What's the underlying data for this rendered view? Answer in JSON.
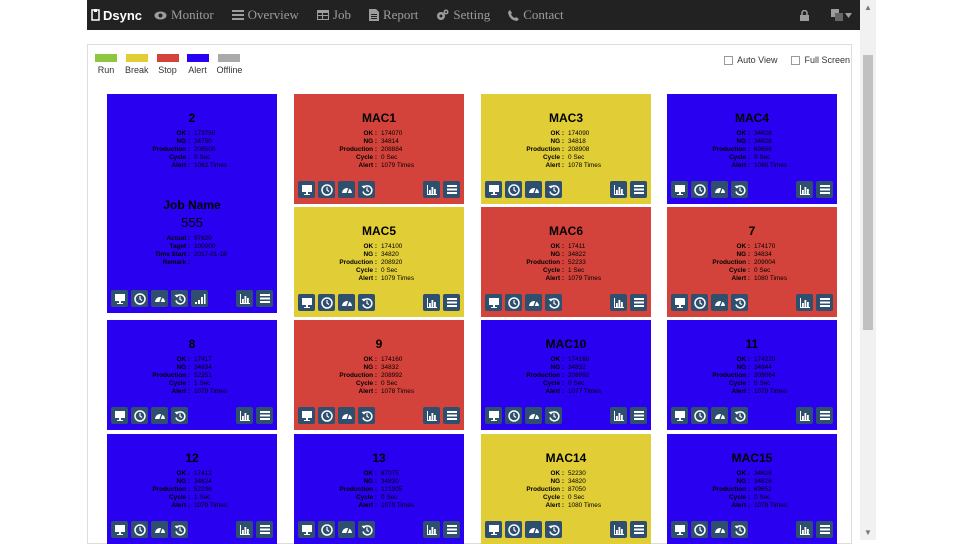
{
  "nav": {
    "brand": "Dsync",
    "items": [
      {
        "label": "Monitor",
        "icon": "eye-icon"
      },
      {
        "label": "Overview",
        "icon": "list-icon"
      },
      {
        "label": "Job",
        "icon": "table-icon"
      },
      {
        "label": "Report",
        "icon": "file-icon"
      },
      {
        "label": "Setting",
        "icon": "gears-icon"
      },
      {
        "label": "Contact",
        "icon": "phone-icon"
      }
    ]
  },
  "legend": [
    {
      "label": "Run",
      "color": "#8dc63f"
    },
    {
      "label": "Break",
      "color": "#e1cd36"
    },
    {
      "label": "Stop",
      "color": "#d4433b"
    },
    {
      "label": "Alert",
      "color": "#2a00f0"
    },
    {
      "label": "Offline",
      "color": "#aaaaaa"
    }
  ],
  "options": {
    "auto_view": "Auto View",
    "full_screen": "Full Screen"
  },
  "colors": {
    "blue": "#2a00f0",
    "red": "#d4433b",
    "yellow": "#e1cd36",
    "icon_bg": "#2f4f6f"
  },
  "labels": {
    "ok": "OK :",
    "ng": "NG :",
    "production": "Production :",
    "cycle": "Cycle :",
    "alert": "Alert :",
    "actual": "Actual :",
    "target": "Taget :",
    "time_start": "Time Start :",
    "remark": "Remark :"
  },
  "job": {
    "title": "Job Name",
    "number": "555",
    "actual": "97620",
    "target": "100000",
    "time_start": "2017-01-18",
    "remark": ""
  },
  "machines": [
    {
      "name": "2",
      "ok": "173750",
      "ng": "34750",
      "production": "208500",
      "cycle": "0 Sec",
      "alert": "1062 Times",
      "status": "blue"
    },
    {
      "name": "MAC1",
      "ok": "174070",
      "ng": "34814",
      "production": "208884",
      "cycle": "0 Sec",
      "alert": "1079 Times",
      "status": "red"
    },
    {
      "name": "MAC3",
      "ok": "174090",
      "ng": "34818",
      "production": "208908",
      "cycle": "0 Sec",
      "alert": "1078 Times",
      "status": "yellow"
    },
    {
      "name": "MAC4",
      "ok": "34828",
      "ng": "34828",
      "production": "69656",
      "cycle": "0 Sec",
      "alert": "1080 Times",
      "status": "blue"
    },
    {
      "name": "MAC5",
      "ok": "174100",
      "ng": "34820",
      "production": "208920",
      "cycle": "0 Sec",
      "alert": "1079 Times",
      "status": "yellow"
    },
    {
      "name": "MAC6",
      "ok": "17411",
      "ng": "34822",
      "production": "52233",
      "cycle": "1 Sec",
      "alert": "1079 Times",
      "status": "red"
    },
    {
      "name": "7",
      "ok": "174170",
      "ng": "34834",
      "production": "209004",
      "cycle": "0 Sec",
      "alert": "1080 Times",
      "status": "red"
    },
    {
      "name": "8",
      "ok": "17417",
      "ng": "34834",
      "production": "52251",
      "cycle": "1 Sec",
      "alert": "1079 Times",
      "status": "blue"
    },
    {
      "name": "9",
      "ok": "174160",
      "ng": "34832",
      "production": "208992",
      "cycle": "0 Sec",
      "alert": "1078 Times",
      "status": "red"
    },
    {
      "name": "MAC10",
      "ok": "174160",
      "ng": "34832",
      "production": "208992",
      "cycle": "0 Sec",
      "alert": "1077 Times",
      "status": "blue"
    },
    {
      "name": "11",
      "ok": "174220",
      "ng": "34844",
      "production": "209064",
      "cycle": "0 Sec",
      "alert": "1079 Times",
      "status": "blue"
    },
    {
      "name": "12",
      "ok": "17412",
      "ng": "34824",
      "production": "52236",
      "cycle": "1 Sec",
      "alert": "1079 Times",
      "status": "blue"
    },
    {
      "name": "13",
      "ok": "87075",
      "ng": "34830",
      "production": "121905",
      "cycle": "0 Sec",
      "alert": "1079 Times",
      "status": "blue"
    },
    {
      "name": "MAC14",
      "ok": "52230",
      "ng": "34820",
      "production": "87050",
      "cycle": "0 Sec",
      "alert": "1080 Times",
      "status": "yellow"
    },
    {
      "name": "MAC15",
      "ok": "34826",
      "ng": "34826",
      "production": "69652",
      "cycle": "0 Sec",
      "alert": "1078 Times",
      "status": "blue"
    }
  ]
}
